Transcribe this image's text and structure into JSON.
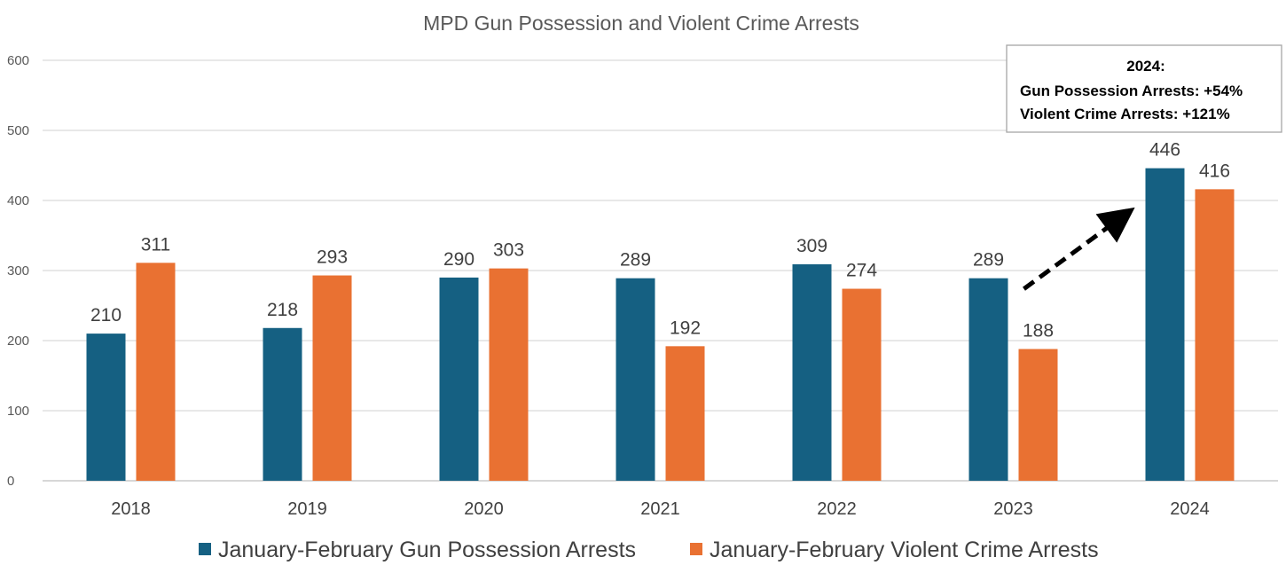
{
  "chart_data": {
    "type": "bar",
    "title": "MPD Gun Possession and Violent Crime Arrests",
    "xlabel": "",
    "ylabel": "",
    "categories": [
      "2018",
      "2019",
      "2020",
      "2021",
      "2022",
      "2023",
      "2024"
    ],
    "series": [
      {
        "name": "January-February Gun Possession Arrests",
        "color": "#156082",
        "values": [
          210,
          218,
          290,
          289,
          309,
          289,
          446
        ]
      },
      {
        "name": "January-February Violent Crime Arrests",
        "color": "#E97132",
        "values": [
          311,
          293,
          303,
          192,
          274,
          188,
          416
        ]
      }
    ],
    "ylim": [
      0,
      600
    ],
    "yticks": [
      0,
      100,
      200,
      300,
      400,
      500,
      600
    ],
    "grid": true,
    "legend_position": "bottom",
    "data_labels": true,
    "annotation": {
      "lines": [
        "2024:",
        "Gun Possession Arrests: +54%",
        "Violent Crime Arrests: +121%"
      ],
      "arrow": {
        "from_category": "2023",
        "to_category": "2024",
        "style": "dashed"
      }
    }
  }
}
